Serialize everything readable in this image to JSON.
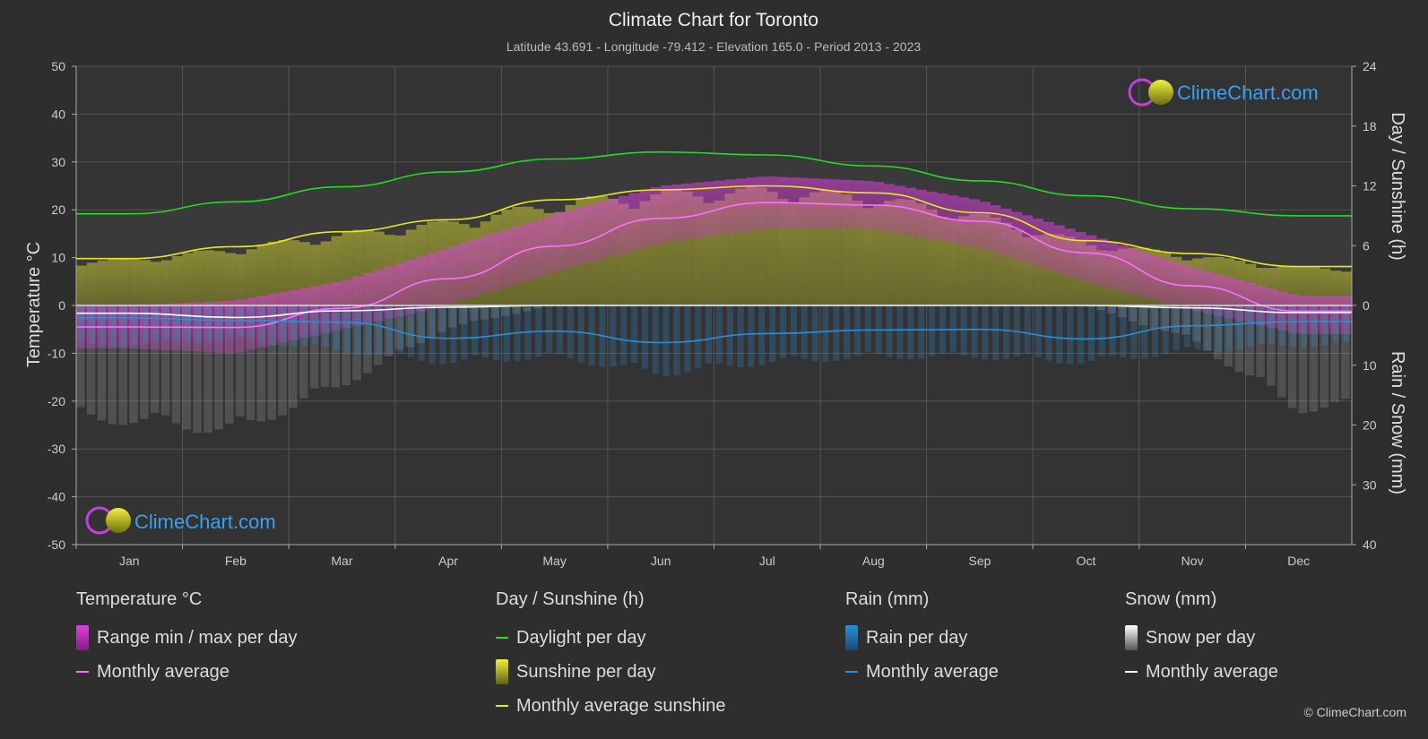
{
  "title": "Climate Chart for Toronto",
  "subtitle": "Latitude 43.691 - Longitude -79.412 - Elevation 165.0 - Period 2013 - 2023",
  "brand": "ClimeChart.com",
  "copyright": "© ClimeChart.com",
  "colors": {
    "background": "#2e2e2e",
    "temp_range": "#e040e0",
    "temp_avg": "#ff70ff",
    "daylight": "#22dd22",
    "sunshine": "#c8c832",
    "sunshine_avg": "#e8e820",
    "rain": "#2a8fd8",
    "rain_avg": "#2a8fd8",
    "snow": "#bbbbbb",
    "snow_avg": "#ffffff",
    "brand": "#3aa0f0"
  },
  "chart_data": {
    "type": "line",
    "months": [
      "Jan",
      "Feb",
      "Mar",
      "Apr",
      "May",
      "Jun",
      "Jul",
      "Aug",
      "Sep",
      "Oct",
      "Nov",
      "Dec"
    ],
    "left_axis": {
      "label": "Temperature °C",
      "range": [
        -50,
        50
      ],
      "ticks": [
        "50",
        "40",
        "30",
        "20",
        "10",
        "0",
        "-10",
        "-20",
        "-30",
        "-40",
        "-50"
      ]
    },
    "right_axis_top": {
      "label": "Day / Sunshine (h)",
      "range": [
        0,
        24
      ],
      "ticks": [
        "24",
        "18",
        "12",
        "6",
        "0"
      ]
    },
    "right_axis_bottom": {
      "label": "Rain / Snow (mm)",
      "range": [
        0,
        40
      ],
      "ticks": [
        "10",
        "20",
        "30",
        "40"
      ]
    },
    "grid": true,
    "series": [
      {
        "name": "Daylight per day",
        "axis": "hours",
        "values": [
          9.2,
          10.4,
          11.9,
          13.4,
          14.7,
          15.4,
          15.1,
          14.0,
          12.5,
          11.0,
          9.7,
          9.0
        ]
      },
      {
        "name": "Monthly average sunshine",
        "axis": "hours",
        "values": [
          4.7,
          5.9,
          7.4,
          8.6,
          10.6,
          11.6,
          12.0,
          11.3,
          9.3,
          6.5,
          5.2,
          3.9
        ]
      },
      {
        "name": "Monthly average",
        "group": "Temperature °C",
        "axis": "temperature",
        "values": [
          -4.5,
          -4.6,
          -0.6,
          5.6,
          12.4,
          18.2,
          21.5,
          21.0,
          17.6,
          11.0,
          4.1,
          -1.2
        ]
      },
      {
        "name": "Monthly average",
        "group": "Rain (mm)",
        "axis": "precipitation",
        "values": [
          2.1,
          2.5,
          2.8,
          5.5,
          4.3,
          6.2,
          4.7,
          4.1,
          4.0,
          5.6,
          3.4,
          2.7
        ]
      },
      {
        "name": "Monthly average",
        "group": "Snow (mm)",
        "axis": "precipitation",
        "values": [
          1.3,
          2.0,
          0.9,
          0.3,
          0.0,
          0.0,
          0.0,
          0.0,
          0.0,
          0.0,
          0.4,
          1.2
        ]
      }
    ],
    "temp_range": {
      "name": "Range min / max per day",
      "min": [
        -9,
        -10,
        -5,
        0,
        7,
        13,
        16,
        16,
        12,
        5,
        -1,
        -6
      ],
      "max": [
        0,
        1,
        5,
        12,
        19,
        25,
        27,
        26,
        22,
        15,
        8,
        2
      ]
    },
    "rain_per_day_max": [
      7,
      6,
      8,
      10,
      9,
      12,
      10,
      9,
      9,
      10,
      8,
      7
    ],
    "snow_per_day_max": [
      20,
      22,
      14,
      4,
      0,
      0,
      0,
      0,
      0,
      0,
      6,
      18
    ]
  },
  "legend": [
    {
      "heading": "Temperature °C",
      "items": [
        {
          "label": "Range min / max per day",
          "kind": "box",
          "color": "#e040e0"
        },
        {
          "label": "Monthly average",
          "kind": "line",
          "color": "#ff70ff"
        }
      ]
    },
    {
      "heading": "Day / Sunshine (h)",
      "items": [
        {
          "label": "Daylight per day",
          "kind": "line",
          "color": "#22dd22"
        },
        {
          "label": "Sunshine per day",
          "kind": "box",
          "color": "#c8c832"
        },
        {
          "label": "Monthly average sunshine",
          "kind": "line",
          "color": "#e8e820"
        }
      ]
    },
    {
      "heading": "Rain (mm)",
      "items": [
        {
          "label": "Rain per day",
          "kind": "box",
          "color": "#2a8fd8"
        },
        {
          "label": "Monthly average",
          "kind": "line",
          "color": "#2a8fd8"
        }
      ]
    },
    {
      "heading": "Snow (mm)",
      "items": [
        {
          "label": "Snow per day",
          "kind": "box",
          "color": "#bbbbbb"
        },
        {
          "label": "Monthly average",
          "kind": "line",
          "color": "#ffffff"
        }
      ]
    }
  ]
}
